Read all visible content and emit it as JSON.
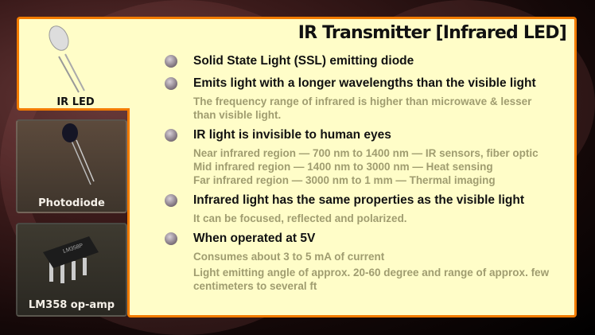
{
  "slide": {
    "title": "IR Transmitter [Infrared LED]",
    "components": [
      {
        "label": "IR LED",
        "icon": "ir-led-icon"
      },
      {
        "label": "Photodiode",
        "icon": "photodiode-icon"
      },
      {
        "label": "LM358 op-amp",
        "icon": "ic-chip-icon",
        "chip_marking": "LM358P"
      }
    ],
    "bullets": [
      {
        "heading": "Solid State Light (SSL) emitting diode",
        "details": []
      },
      {
        "heading": "Emits light with a longer wavelengths than the visible light",
        "details": [
          "The frequency range of infrared is higher than microwave & lesser than visible light."
        ]
      },
      {
        "heading": "IR light is invisible to human eyes",
        "details": [
          "Near infrared region — 700 nm to 1400 nm — IR sensors, fiber optic",
          "Mid infrared region — 1400 nm to 3000 nm — Heat sensing",
          "Far infrared region — 3000 nm to 1 mm — Thermal imaging"
        ]
      },
      {
        "heading": "Infrared light has the same properties as the visible light",
        "details": [
          "It can be focused, reflected and polarized."
        ]
      },
      {
        "heading": "When operated at 5V",
        "details": [
          "Consumes about 3 to 5 mA of current",
          "Light emitting angle of approx. 20-60 degree and range of approx. few centimeters to several ft"
        ]
      }
    ]
  },
  "colors": {
    "accent": "#f27b00",
    "panel": "#fffdc8",
    "detail_text": "#a09d70"
  }
}
